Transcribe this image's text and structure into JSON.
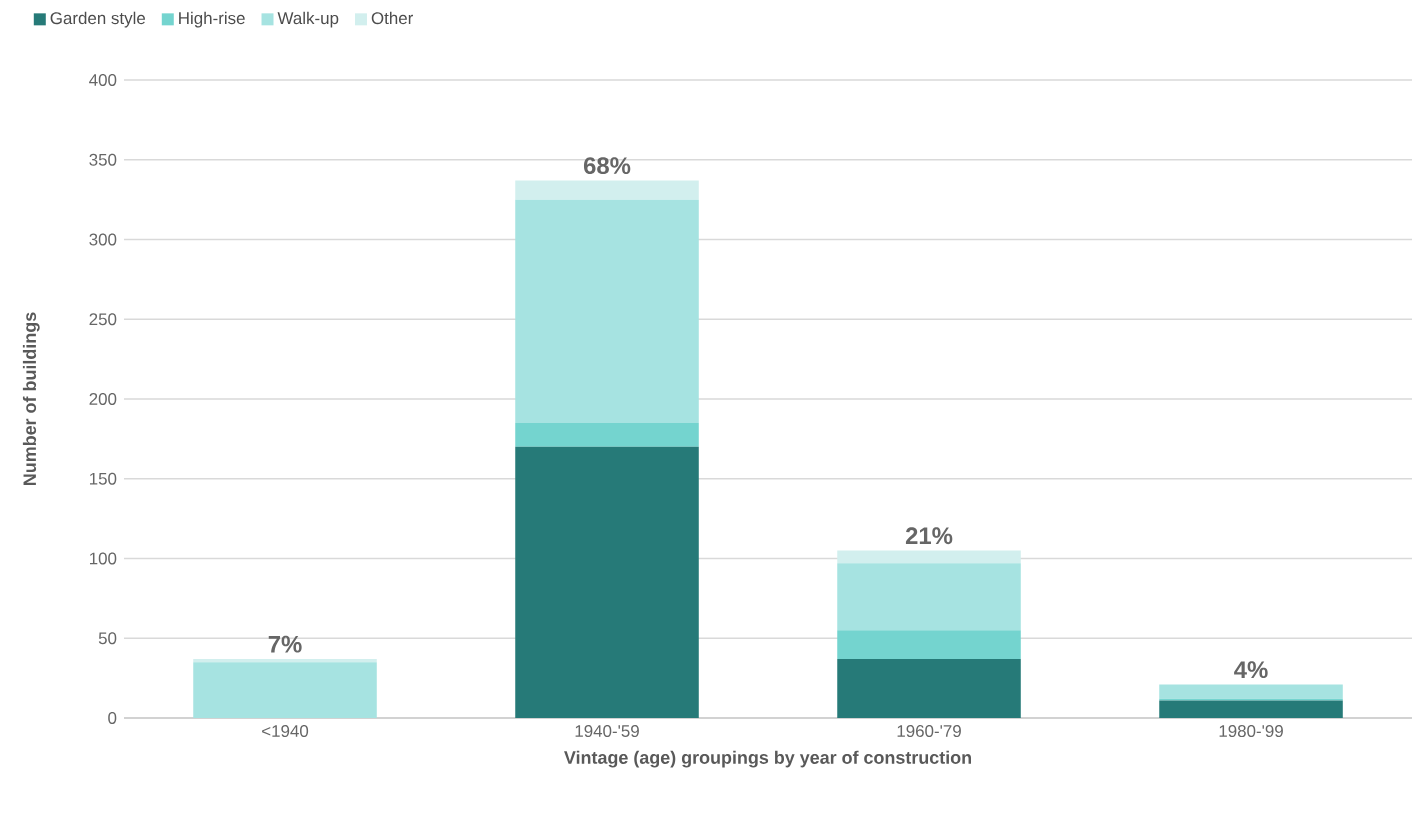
{
  "chart_data": {
    "type": "bar",
    "stacked": true,
    "xlabel": "Vintage (age) groupings by year of construction",
    "ylabel": "Number of buildings",
    "categories": [
      "<1940",
      "1940-'59",
      "1960-'79",
      "1980-'99"
    ],
    "series": [
      {
        "name": "Garden style",
        "color": "#267a78",
        "values": [
          0,
          170,
          37,
          11
        ]
      },
      {
        "name": "High-rise",
        "color": "#74d4cf",
        "values": [
          0,
          15,
          18,
          1
        ]
      },
      {
        "name": "Walk-up",
        "color": "#a6e3e1",
        "values": [
          35,
          140,
          42,
          9
        ]
      },
      {
        "name": "Other",
        "color": "#d2efee",
        "values": [
          2,
          12,
          8,
          0
        ]
      }
    ],
    "ylim": [
      0,
      400
    ],
    "yticks": [
      0,
      50,
      100,
      150,
      200,
      250,
      300,
      350,
      400
    ],
    "grid": "y",
    "legend": "top left",
    "annotations": [
      {
        "text": "7%",
        "x": "<1940",
        "y": 37
      },
      {
        "text": "68%",
        "x": "1940-'59",
        "y": 337
      },
      {
        "text": "21%",
        "x": "1960-'79",
        "y": 105
      },
      {
        "text": "4%",
        "x": "1980-'99",
        "y": 21
      }
    ]
  }
}
